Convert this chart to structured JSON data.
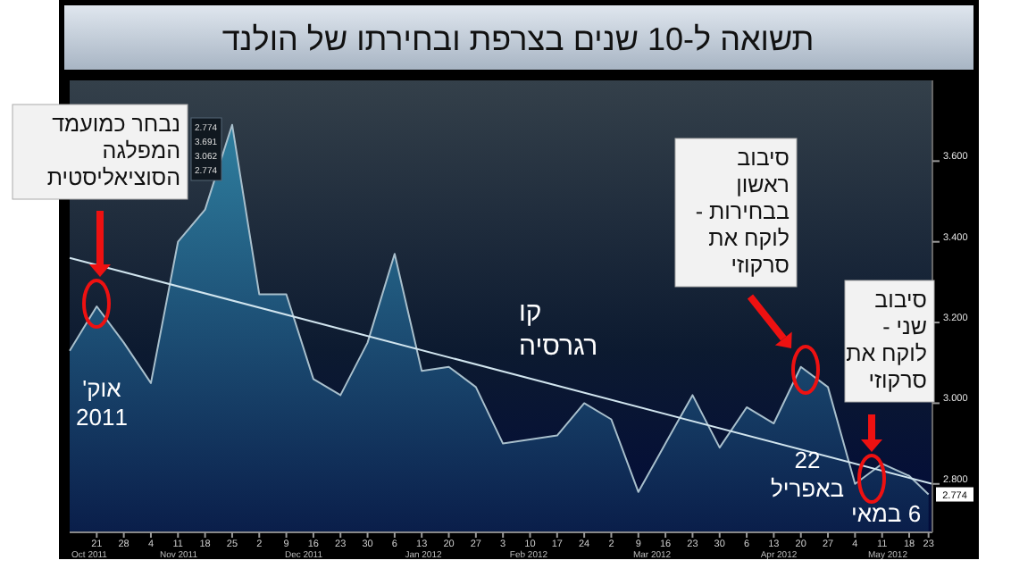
{
  "chart_data": {
    "type": "area",
    "title": "תשואה ל-10 שנים בצרפת ובחירתו של הולנד",
    "xlim": [
      "2011-10-14",
      "2012-05-24"
    ],
    "xticks": [
      {
        "value": "2011-10-21",
        "label": "21"
      },
      {
        "value": "2011-10-28",
        "label": "28"
      },
      {
        "value": "2011-11-04",
        "label": "4"
      },
      {
        "value": "2011-11-11",
        "label": "11"
      },
      {
        "value": "2011-11-18",
        "label": "18"
      },
      {
        "value": "2011-11-25",
        "label": "25"
      },
      {
        "value": "2011-12-02",
        "label": "2"
      },
      {
        "value": "2011-12-09",
        "label": "9"
      },
      {
        "value": "2011-12-16",
        "label": "16"
      },
      {
        "value": "2011-12-23",
        "label": "23"
      },
      {
        "value": "2011-12-30",
        "label": "30"
      },
      {
        "value": "2012-01-06",
        "label": "6"
      },
      {
        "value": "2012-01-13",
        "label": "13"
      },
      {
        "value": "2012-01-20",
        "label": "20"
      },
      {
        "value": "2012-01-27",
        "label": "27"
      },
      {
        "value": "2012-02-03",
        "label": "3"
      },
      {
        "value": "2012-02-10",
        "label": "10"
      },
      {
        "value": "2012-02-17",
        "label": "17"
      },
      {
        "value": "2012-02-24",
        "label": "24"
      },
      {
        "value": "2012-03-02",
        "label": "2"
      },
      {
        "value": "2012-03-09",
        "label": "9"
      },
      {
        "value": "2012-03-16",
        "label": "16"
      },
      {
        "value": "2012-03-23",
        "label": "23"
      },
      {
        "value": "2012-03-30",
        "label": "30"
      },
      {
        "value": "2012-04-06",
        "label": "6"
      },
      {
        "value": "2012-04-13",
        "label": "13"
      },
      {
        "value": "2012-04-20",
        "label": "20"
      },
      {
        "value": "2012-04-27",
        "label": "27"
      },
      {
        "value": "2012-05-04",
        "label": "4"
      },
      {
        "value": "2012-05-11",
        "label": "11"
      },
      {
        "value": "2012-05-18",
        "label": "18"
      },
      {
        "value": "2012-05-23",
        "label": "23"
      }
    ],
    "ylim": [
      2.68,
      3.8
    ],
    "yticks": [
      {
        "value": 2.8,
        "label": "2.800"
      },
      {
        "value": 3.0,
        "label": "3.000"
      },
      {
        "value": 3.2,
        "label": "3.200"
      },
      {
        "value": 3.4,
        "label": "3.400"
      },
      {
        "value": 3.6,
        "label": "3.600"
      }
    ],
    "series": [
      {
        "color": "#2f7f9f",
        "x": [
          "2011-10-14",
          "2011-10-21",
          "2011-10-28",
          "2011-11-04",
          "2011-11-11",
          "2011-11-18",
          "2011-11-25",
          "2011-12-02",
          "2011-12-09",
          "2011-12-16",
          "2011-12-23",
          "2011-12-30",
          "2012-01-06",
          "2012-01-13",
          "2012-01-20",
          "2012-01-27",
          "2012-02-03",
          "2012-02-10",
          "2012-02-17",
          "2012-02-24",
          "2012-03-02",
          "2012-03-09",
          "2012-03-16",
          "2012-03-23",
          "2012-03-30",
          "2012-04-06",
          "2012-04-13",
          "2012-04-20",
          "2012-04-27",
          "2012-05-04",
          "2012-05-11",
          "2012-05-18",
          "2012-05-23"
        ],
        "values": [
          3.13,
          3.24,
          3.15,
          3.05,
          3.4,
          3.48,
          3.69,
          3.27,
          3.27,
          3.06,
          3.02,
          3.15,
          3.37,
          3.08,
          3.09,
          3.04,
          2.9,
          2.91,
          2.92,
          3.0,
          2.96,
          2.78,
          2.9,
          3.02,
          2.89,
          2.99,
          2.95,
          3.09,
          3.04,
          2.8,
          2.85,
          2.82,
          2.774
        ]
      },
      {
        "type": "line",
        "name": "קו\nרגרסיה",
        "color": "#d0e4ee",
        "x": [
          "2011-10-14",
          "2012-05-24"
        ],
        "values": [
          3.36,
          2.8
        ]
      }
    ],
    "annotations": [
      "נבחר כמועמד\nהמפלגה\nהסוציאליסטית",
      "אוק'\n2011",
      "סיבוב\nראשון\nבבחירות -\nלוקח את\nסרקוזי",
      "22\nבאפריל",
      "סיבוב\nשני -\nלוקח את\nסרקוזי",
      "6 במאי",
      "2.774\n3.691\n3.062\n2.774",
      "2.774",
      "Oct 2011",
      "Nov 2011",
      "Dec 2011",
      "Jan 2012",
      "Feb 2012",
      "Mar 2012",
      "Apr 2012",
      "May 2012"
    ],
    "grid": false
  }
}
